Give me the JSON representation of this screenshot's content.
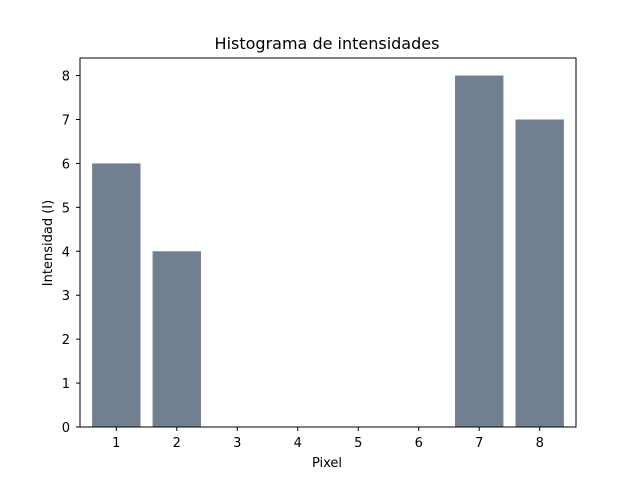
{
  "chart_data": {
    "type": "bar",
    "title": "Histograma de intensidades",
    "xlabel": "Pixel",
    "ylabel": "Intensidad (I)",
    "categories": [
      1,
      2,
      3,
      4,
      5,
      6,
      7,
      8
    ],
    "values": [
      6,
      4,
      0,
      0,
      0,
      0,
      8,
      7
    ],
    "xlim": [
      0.4,
      8.6
    ],
    "ylim": [
      0,
      8.4
    ],
    "yticks": [
      0,
      1,
      2,
      3,
      4,
      5,
      6,
      7,
      8
    ],
    "xticks": [
      1,
      2,
      3,
      4,
      5,
      6,
      7,
      8
    ],
    "bar_width": 0.8,
    "bar_color": "#708090",
    "grid": false,
    "legend": "none"
  }
}
